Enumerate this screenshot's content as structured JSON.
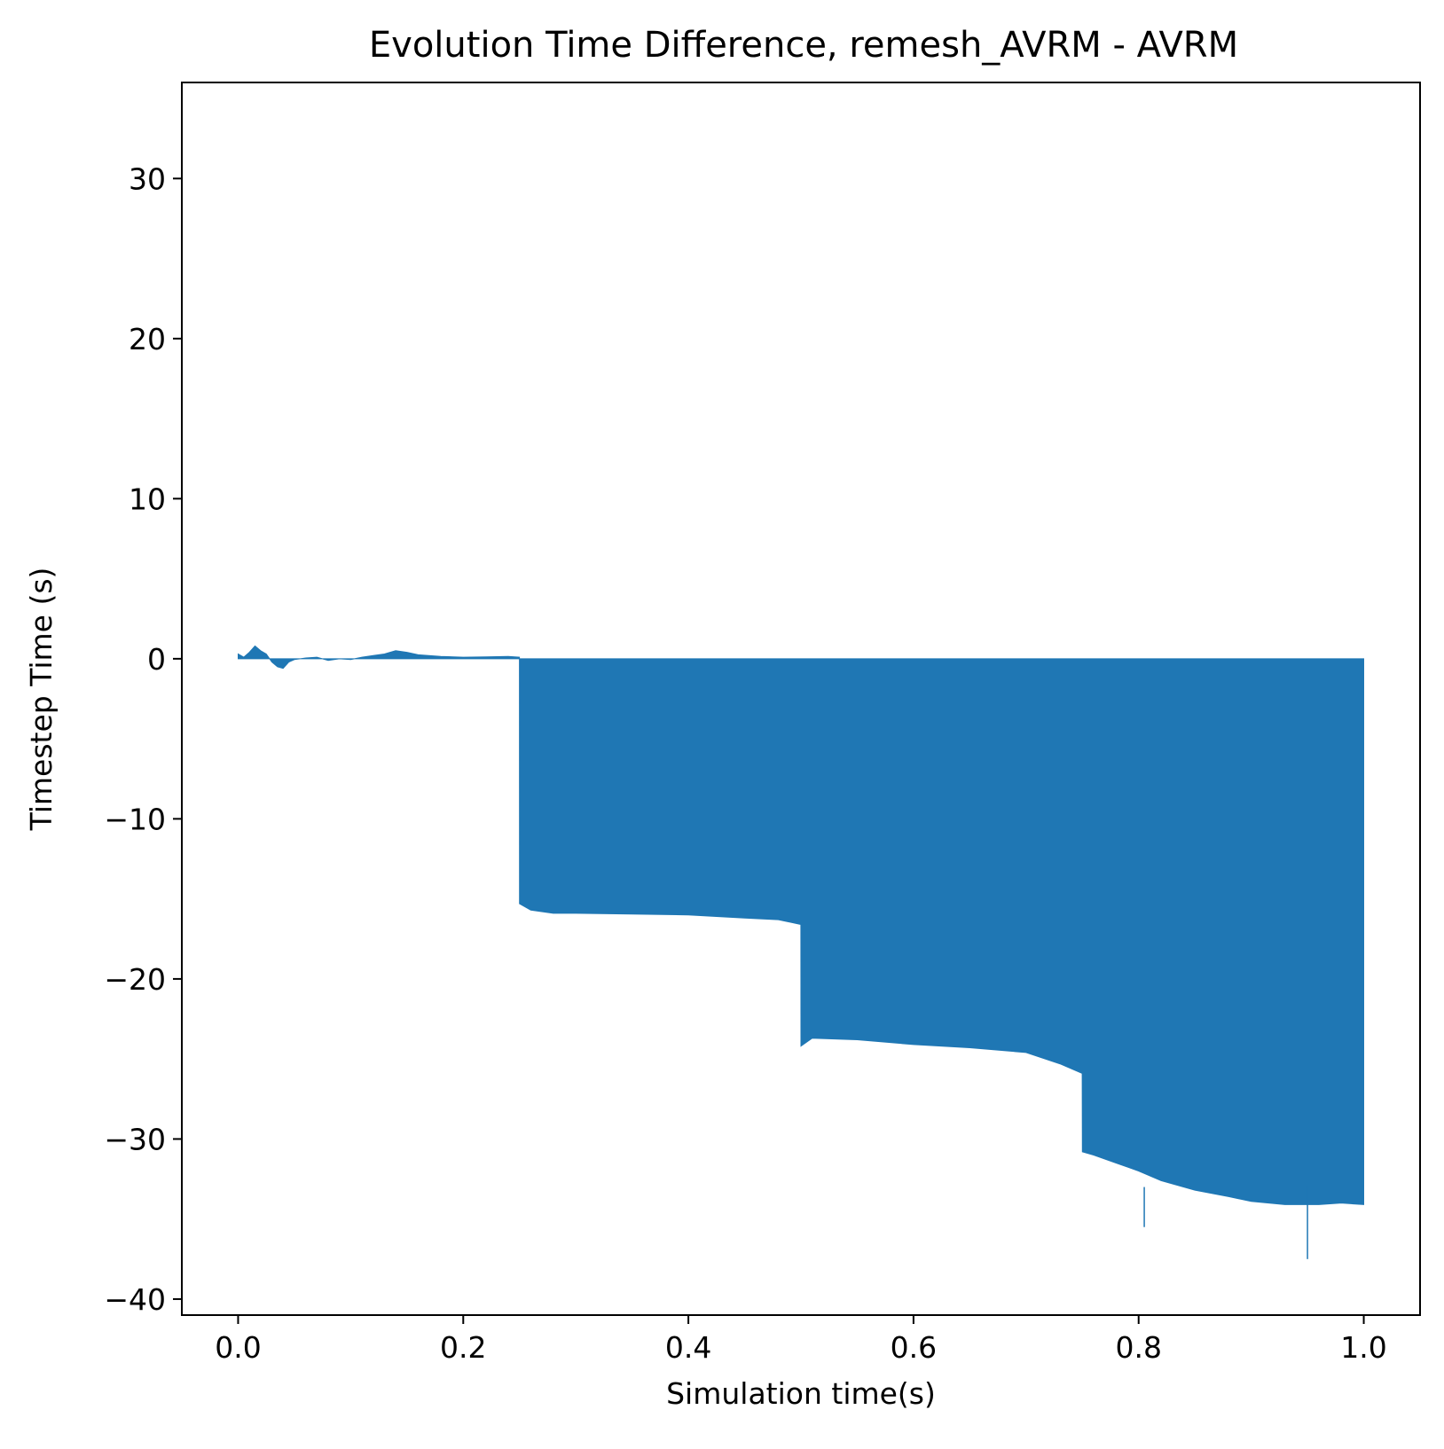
{
  "chart_data": {
    "type": "bar",
    "title": "Evolution Time Difference, remesh_AVRM - AVRM",
    "xlabel": "Simulation time(s)",
    "ylabel": "Timestep Time (s)",
    "xlim": [
      -0.05,
      1.05
    ],
    "ylim": [
      -41,
      36
    ],
    "xticks": [
      0.0,
      0.2,
      0.4,
      0.6,
      0.8,
      1.0
    ],
    "xtick_labels": [
      "0.0",
      "0.2",
      "0.4",
      "0.6",
      "0.8",
      "1.0"
    ],
    "yticks": [
      30,
      20,
      10,
      0,
      -10,
      -20,
      -30,
      -40
    ],
    "ytick_labels": [
      "30",
      "20",
      "10",
      "0",
      "−10",
      "−20",
      "−30",
      "−40"
    ],
    "grid": false,
    "legend": "none",
    "color": "#1f77b4",
    "series": [
      {
        "x": [
          0.0,
          0.005,
          0.01,
          0.015,
          0.02,
          0.025,
          0.03,
          0.035,
          0.04,
          0.045,
          0.05,
          0.06,
          0.07,
          0.08,
          0.09,
          0.1,
          0.11,
          0.12,
          0.13,
          0.14,
          0.15,
          0.16,
          0.18,
          0.2,
          0.22,
          0.24,
          0.2499,
          0.25,
          0.26,
          0.28,
          0.3,
          0.35,
          0.4,
          0.45,
          0.48,
          0.4999,
          0.5,
          0.51,
          0.55,
          0.6,
          0.65,
          0.7,
          0.73,
          0.7499,
          0.75,
          0.76,
          0.78,
          0.8,
          0.82,
          0.85,
          0.88,
          0.9,
          0.93,
          0.96,
          0.98,
          1.0
        ],
        "y": [
          0.3,
          0.1,
          0.4,
          0.8,
          0.5,
          0.3,
          -0.2,
          -0.5,
          -0.6,
          -0.2,
          -0.05,
          0.05,
          0.1,
          -0.1,
          0.0,
          -0.05,
          0.1,
          0.2,
          0.3,
          0.5,
          0.4,
          0.25,
          0.15,
          0.1,
          0.12,
          0.15,
          0.1,
          -15.3,
          -15.7,
          -15.9,
          -15.9,
          -15.95,
          -16.0,
          -16.2,
          -16.3,
          -16.6,
          -24.2,
          -23.7,
          -23.8,
          -24.1,
          -24.3,
          -24.6,
          -25.3,
          -25.9,
          -30.8,
          -31.0,
          -31.5,
          -32.0,
          -32.6,
          -33.2,
          -33.6,
          -33.9,
          -34.1,
          -34.1,
          -34.0,
          -34.1
        ]
      }
    ],
    "spikes": [
      {
        "x": 0.805,
        "y": -35.5
      },
      {
        "x": 0.95,
        "y": -37.5
      }
    ]
  }
}
